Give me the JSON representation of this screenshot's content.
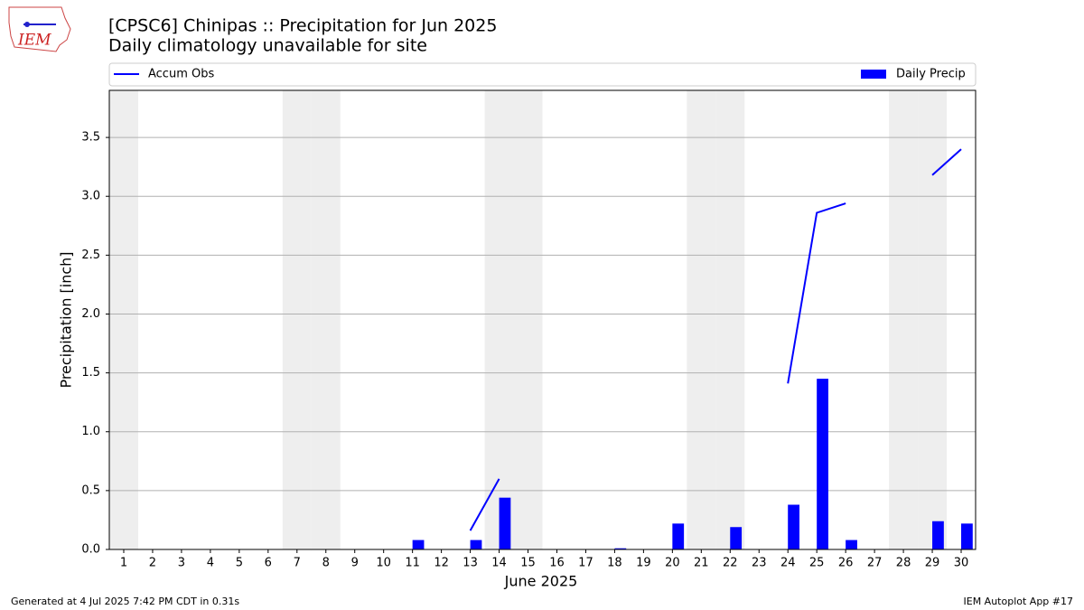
{
  "chart_data": {
    "type": "bar",
    "title": "[CPSC6] Chinipas :: Precipitation for Jun 2025",
    "subtitle": "Daily climatology unavailable for site",
    "xlabel": "June 2025",
    "ylabel": "Precipitation [inch]",
    "x": [
      1,
      2,
      3,
      4,
      5,
      6,
      7,
      8,
      9,
      10,
      11,
      12,
      13,
      14,
      15,
      16,
      17,
      18,
      19,
      20,
      21,
      22,
      23,
      24,
      25,
      26,
      27,
      28,
      29,
      30
    ],
    "series": [
      {
        "name": "Accum Obs",
        "type": "line",
        "color": "#0000ff",
        "values": [
          null,
          null,
          null,
          null,
          null,
          null,
          null,
          null,
          null,
          null,
          null,
          null,
          0.16,
          0.6,
          null,
          null,
          null,
          null,
          null,
          null,
          null,
          null,
          null,
          1.41,
          2.86,
          2.94,
          null,
          null,
          3.18,
          3.4
        ]
      },
      {
        "name": "Daily Precip",
        "type": "bar",
        "color": "#0000ff",
        "values": [
          0,
          0,
          0,
          0,
          0,
          0,
          0,
          0,
          0,
          0,
          0.08,
          0,
          0.08,
          0.44,
          0,
          0,
          0,
          0.01,
          0,
          0.22,
          0,
          0.19,
          0,
          0.38,
          1.45,
          0.08,
          0,
          0,
          0.24,
          0.22
        ]
      }
    ],
    "weekend_days": [
      1,
      7,
      8,
      14,
      15,
      21,
      22,
      28,
      29
    ],
    "xlim": [
      0.5,
      30.5
    ],
    "xticks": [
      1,
      2,
      3,
      4,
      5,
      6,
      7,
      8,
      9,
      10,
      11,
      12,
      13,
      14,
      15,
      16,
      17,
      18,
      19,
      20,
      21,
      22,
      23,
      24,
      25,
      26,
      27,
      28,
      29,
      30
    ],
    "ylim": [
      0,
      3.9
    ],
    "yticks": [
      {
        "value": 0,
        "label": "0.0"
      },
      0.5,
      {
        "value": 1,
        "label": "1.0"
      },
      1.5,
      {
        "value": 2,
        "label": "2.0"
      },
      2.5,
      {
        "value": 3,
        "label": "3.0"
      },
      3.5
    ],
    "grid": true
  },
  "footer": {
    "left": "Generated at 4 Jul 2025 7:42 PM CDT in 0.31s",
    "right": "IEM Autoplot App #17"
  }
}
